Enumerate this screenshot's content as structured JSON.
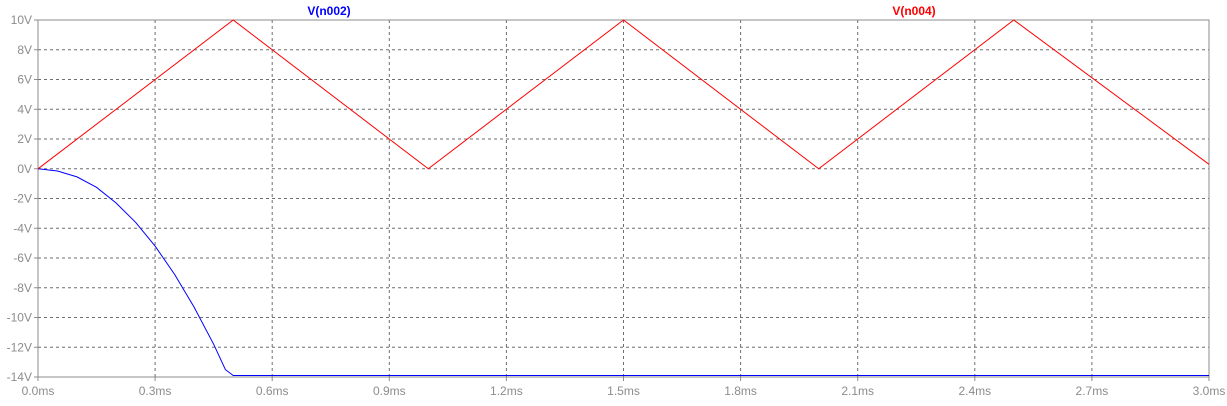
{
  "chart_data": {
    "type": "line",
    "title": "",
    "xlabel": "",
    "ylabel": "",
    "xlim": [
      0,
      3.0
    ],
    "ylim": [
      -14,
      10
    ],
    "grid": true,
    "x_ticks": [
      "0.0ms",
      "0.3ms",
      "0.6ms",
      "0.9ms",
      "1.2ms",
      "1.5ms",
      "1.8ms",
      "2.1ms",
      "2.4ms",
      "2.7ms",
      "3.0ms"
    ],
    "x_tick_values": [
      0,
      0.3,
      0.6,
      0.9,
      1.2,
      1.5,
      1.8,
      2.1,
      2.4,
      2.7,
      3.0
    ],
    "y_ticks": [
      "10V",
      "8V",
      "6V",
      "4V",
      "2V",
      "0V",
      "-2V",
      "-4V",
      "-6V",
      "-8V",
      "-10V",
      "-12V",
      "-14V"
    ],
    "y_tick_values": [
      10,
      8,
      6,
      4,
      2,
      0,
      -2,
      -4,
      -6,
      -8,
      -10,
      -12,
      -14
    ],
    "series": [
      {
        "name": "V(n002)",
        "color": "#0000ff",
        "x": [
          0,
          0.05,
          0.1,
          0.15,
          0.2,
          0.25,
          0.3,
          0.35,
          0.4,
          0.45,
          0.48,
          0.5,
          1.0,
          1.5,
          2.0,
          2.5,
          3.0
        ],
        "values": [
          0,
          -0.15,
          -0.55,
          -1.25,
          -2.3,
          -3.6,
          -5.2,
          -7.1,
          -9.3,
          -11.8,
          -13.5,
          -13.9,
          -13.9,
          -13.9,
          -13.9,
          -13.9,
          -13.9
        ]
      },
      {
        "name": "V(n004)",
        "color": "#ff0000",
        "x": [
          0,
          0.5,
          1.0,
          1.5,
          2.0,
          2.5,
          3.0
        ],
        "values": [
          0,
          10,
          0,
          10,
          0,
          10,
          0.3
        ]
      }
    ]
  }
}
